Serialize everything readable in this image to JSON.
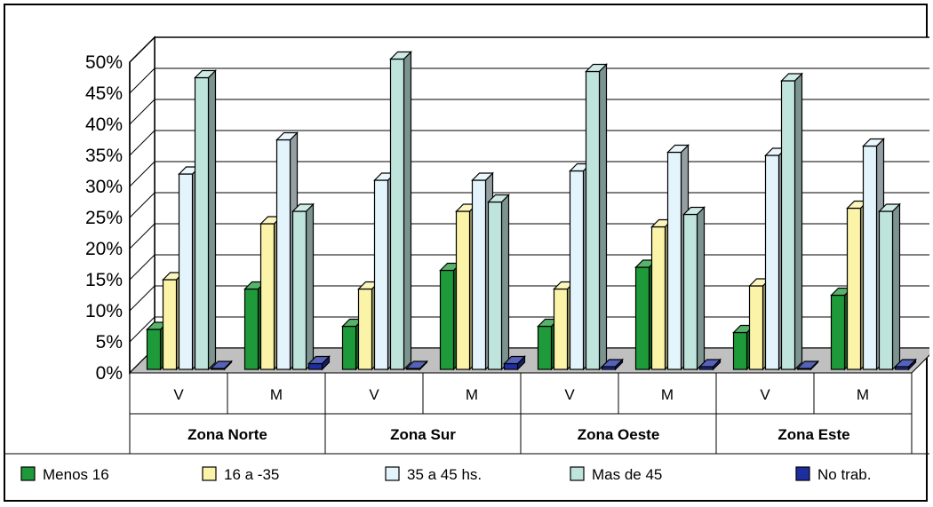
{
  "chart_data": {
    "type": "bar",
    "style": "3d-clustered-column",
    "y_axis": {
      "ylim": [
        0,
        50
      ],
      "ticks": [
        0,
        5,
        10,
        15,
        20,
        25,
        30,
        35,
        40,
        45,
        50
      ],
      "tick_labels": [
        "0%",
        "5%",
        "10%",
        "15%",
        "20%",
        "25%",
        "30%",
        "35%",
        "40%",
        "45%",
        "50%"
      ]
    },
    "grid": true,
    "legend_position": "bottom",
    "groups": [
      {
        "zone": "Zona Norte",
        "categories": [
          "V",
          "M"
        ]
      },
      {
        "zone": "Zona Sur",
        "categories": [
          "V",
          "M"
        ]
      },
      {
        "zone": "Zona Oeste",
        "categories": [
          "V",
          "M"
        ]
      },
      {
        "zone": "Zona Este",
        "categories": [
          "V",
          "M"
        ]
      }
    ],
    "categories": [
      "V",
      "M",
      "V",
      "M",
      "V",
      "M",
      "V",
      "M"
    ],
    "series": [
      {
        "name": "Menos 16",
        "color": "#1f9a3a",
        "values": [
          7,
          13.5,
          7.5,
          16.5,
          7.5,
          17,
          6.5,
          12.5
        ]
      },
      {
        "name": "16 a -35",
        "color": "#fbf3a8",
        "values": [
          15,
          24,
          13.5,
          26,
          13.5,
          23.5,
          14,
          26.5
        ]
      },
      {
        "name": "35 a 45 hs.",
        "color": "#e3f4fc",
        "values": [
          32,
          37.5,
          31,
          31,
          32.5,
          35.5,
          35,
          36.5
        ]
      },
      {
        "name": "Mas de 45",
        "color": "#bfe4dc",
        "values": [
          47.5,
          26,
          50.5,
          27.5,
          48.5,
          25.5,
          47,
          26
        ]
      },
      {
        "name": "No trab.",
        "color": "#1e2ea0",
        "values": [
          0.5,
          1.5,
          0.3,
          1.5,
          1,
          1,
          0.2,
          1
        ]
      }
    ]
  }
}
